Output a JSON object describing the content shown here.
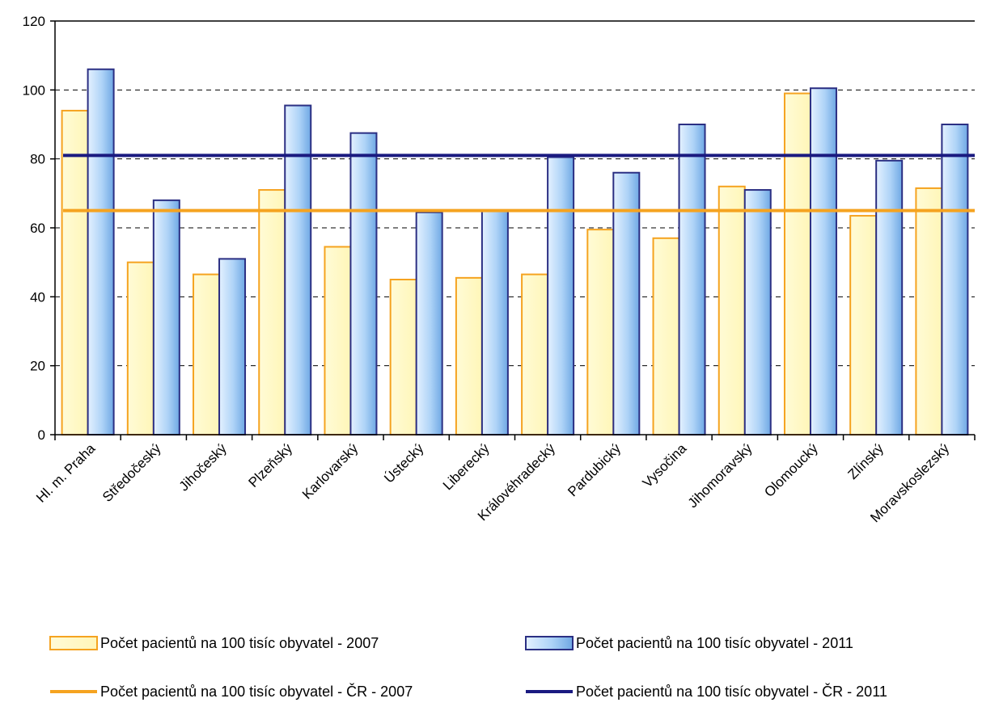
{
  "chart_data": {
    "type": "bar",
    "categories": [
      "Hl. m. Praha",
      "Středočeský",
      "Jihočeský",
      "Plzeňský",
      "Karlovarský",
      "Ústecký",
      "Liberecký",
      "Královéhradecký",
      "Pardubický",
      "Vysočina",
      "Jihomoravský",
      "Olomoucký",
      "Zlínský",
      "Moravskoslezský"
    ],
    "series": [
      {
        "name": "Počet pacientů na 100 tisíc obyvatel - 2007",
        "values": [
          94,
          50,
          46.5,
          71,
          54.5,
          45,
          45.5,
          46.5,
          59.5,
          57,
          72,
          99,
          63.5,
          71.5
        ],
        "color": "#fffacc",
        "stroke": "#f5a320"
      },
      {
        "name": "Počet pacientů na 100 tisíc obyvatel - 2011",
        "values": [
          106,
          68,
          51,
          95.5,
          87.5,
          64.5,
          65,
          80.5,
          76,
          90,
          71,
          100.5,
          79.5,
          90
        ],
        "color": "#9cc7f0",
        "stroke": "#2b2f83"
      }
    ],
    "reference_lines": [
      {
        "name": "Počet pacientů na 100 tisíc obyvatel - ČR - 2007",
        "value": 65,
        "color": "#f5a320"
      },
      {
        "name": "Počet pacientů na 100 tisíc obyvatel - ČR - 2011",
        "value": 81,
        "color": "#1a1a80"
      }
    ],
    "yticks": [
      "0",
      "20",
      "40",
      "60",
      "80",
      "100",
      "120"
    ],
    "ylim": [
      0,
      120
    ],
    "grid": true,
    "legend_position": "bottom"
  }
}
